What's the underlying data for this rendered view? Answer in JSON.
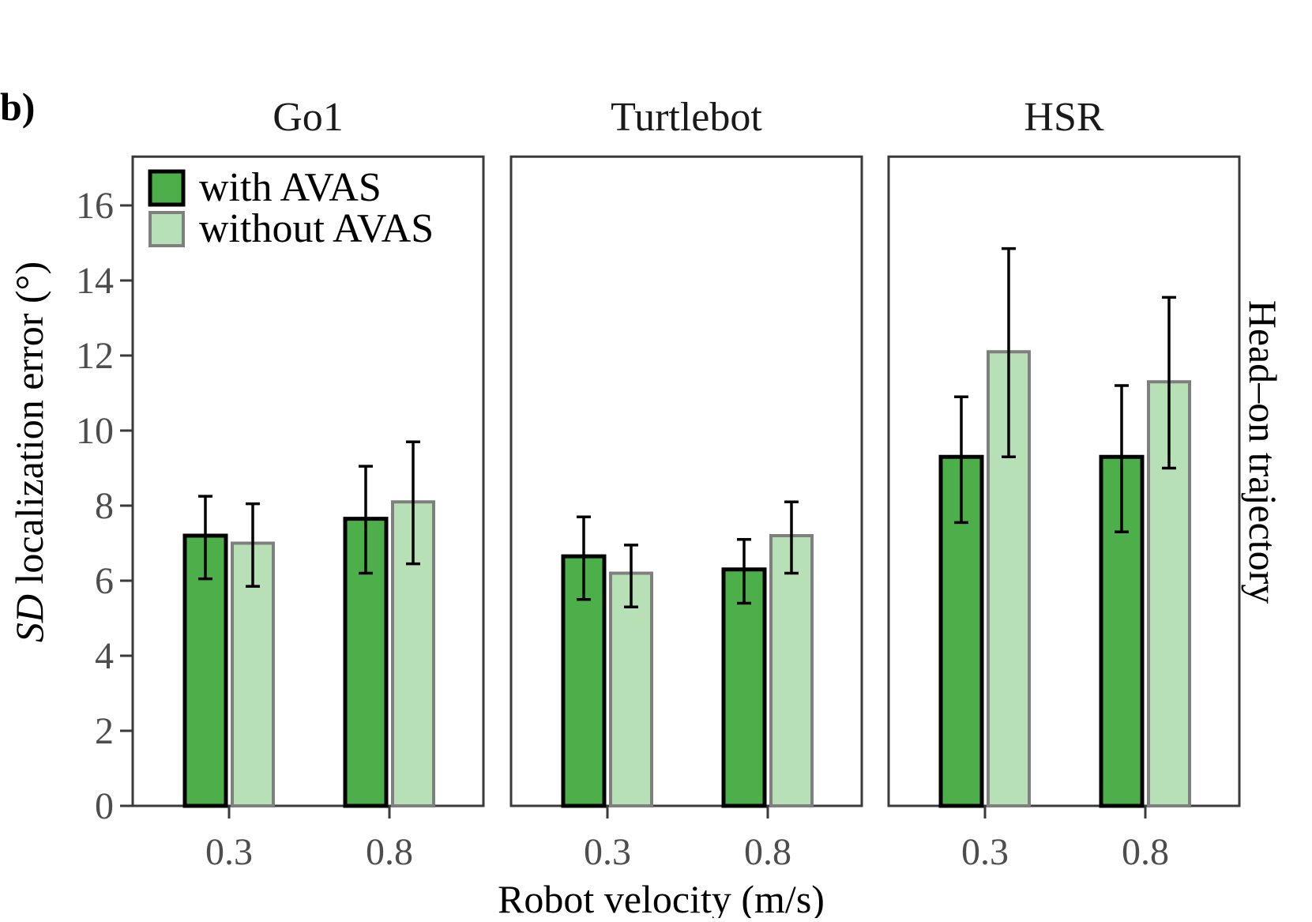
{
  "figure": {
    "panel_tag": "b)",
    "row_label": "Head–on trajectory"
  },
  "colors": {
    "with_fill": "#4daf4a",
    "with_stroke": "#000000",
    "without_fill": "#b8e0b6",
    "without_stroke": "#7f7f7f"
  },
  "chart_data": {
    "type": "bar",
    "xlabel": "Robot velocity (m/s)",
    "ylabel_italic": "SD",
    "ylabel_rest": " localization error (°)",
    "ylim": [
      0,
      17.3
    ],
    "yticks": [
      0,
      2,
      4,
      6,
      8,
      10,
      12,
      14,
      16
    ],
    "ytick_labels": [
      "0",
      "2",
      "4",
      "6",
      "8",
      "10",
      "12",
      "14",
      "16"
    ],
    "categories": [
      "0.3",
      "0.8"
    ],
    "grid": false,
    "legend_position": "top-left",
    "legend": [
      "with AVAS",
      "without AVAS"
    ],
    "panels": [
      {
        "title": "Go1",
        "series": [
          {
            "name": "with AVAS",
            "values": [
              7.2,
              7.65
            ],
            "err_low": [
              6.05,
              6.2
            ],
            "err_high": [
              8.25,
              9.05
            ]
          },
          {
            "name": "without AVAS",
            "values": [
              7.0,
              8.1
            ],
            "err_low": [
              5.85,
              6.45
            ],
            "err_high": [
              8.05,
              9.7
            ]
          }
        ]
      },
      {
        "title": "Turtlebot",
        "series": [
          {
            "name": "with AVAS",
            "values": [
              6.65,
              6.3
            ],
            "err_low": [
              5.5,
              5.4
            ],
            "err_high": [
              7.7,
              7.1
            ]
          },
          {
            "name": "without AVAS",
            "values": [
              6.2,
              7.2
            ],
            "err_low": [
              5.3,
              6.2
            ],
            "err_high": [
              6.95,
              8.1
            ]
          }
        ]
      },
      {
        "title": "HSR",
        "series": [
          {
            "name": "with AVAS",
            "values": [
              9.3,
              9.3
            ],
            "err_low": [
              7.55,
              7.3
            ],
            "err_high": [
              10.9,
              11.2
            ]
          },
          {
            "name": "without AVAS",
            "values": [
              12.1,
              11.3
            ],
            "err_low": [
              9.3,
              9.0
            ],
            "err_high": [
              14.85,
              13.55
            ]
          }
        ]
      }
    ]
  }
}
